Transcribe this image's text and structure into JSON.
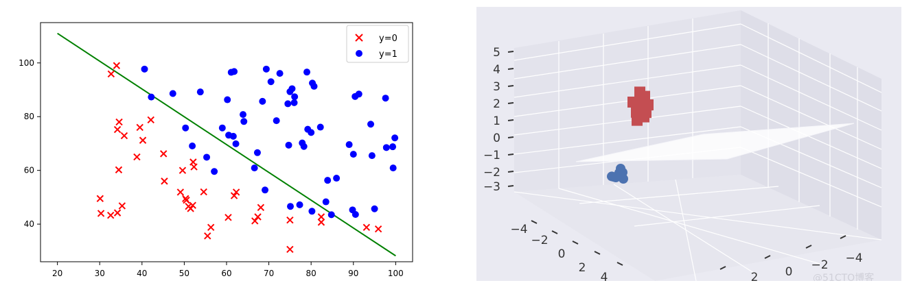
{
  "chart_data": [
    {
      "type": "scatter",
      "title": "",
      "xlabel": "",
      "ylabel": "",
      "xlim": [
        16,
        104
      ],
      "ylim": [
        26,
        115
      ],
      "xticks": [
        20,
        30,
        40,
        50,
        60,
        70,
        80,
        90,
        100
      ],
      "yticks": [
        40,
        60,
        80,
        100
      ],
      "grid": false,
      "legend_position": "top-right",
      "series": [
        {
          "name": "y=0",
          "marker": "x",
          "color": "#ff0000",
          "points": [
            [
              32.7,
              95.9
            ],
            [
              34.0,
              99.0
            ],
            [
              34.6,
              78.0
            ],
            [
              34.2,
              75.2
            ],
            [
              35.8,
              72.9
            ],
            [
              39.5,
              76.0
            ],
            [
              40.2,
              71.2
            ],
            [
              42.1,
              78.8
            ],
            [
              38.8,
              65.0
            ],
            [
              45.1,
              66.2
            ],
            [
              34.5,
              60.2
            ],
            [
              45.3,
              56.0
            ],
            [
              49.6,
              60.0
            ],
            [
              52.1,
              63.1
            ],
            [
              52.3,
              61.3
            ],
            [
              30.1,
              49.5
            ],
            [
              30.3,
              44.0
            ],
            [
              32.6,
              43.3
            ],
            [
              34.2,
              44.2
            ],
            [
              35.3,
              46.8
            ],
            [
              49.1,
              51.9
            ],
            [
              50.3,
              49.5
            ],
            [
              50.5,
              48.9
            ],
            [
              51.0,
              46.6
            ],
            [
              51.5,
              45.8
            ],
            [
              52.0,
              47.0
            ],
            [
              54.6,
              52.0
            ],
            [
              55.5,
              35.6
            ],
            [
              56.3,
              38.8
            ],
            [
              60.4,
              42.5
            ],
            [
              61.8,
              50.6
            ],
            [
              62.3,
              51.9
            ],
            [
              66.7,
              41.2
            ],
            [
              67.4,
              42.7
            ],
            [
              68.1,
              46.2
            ],
            [
              75.0,
              30.6
            ],
            [
              75.0,
              41.5
            ],
            [
              82.4,
              42.7
            ],
            [
              82.4,
              40.7
            ],
            [
              93.1,
              38.8
            ],
            [
              95.9,
              38.2
            ]
          ]
        },
        {
          "name": "y=1",
          "marker": "o",
          "color": "#0000ff",
          "points": [
            [
              40.6,
              97.7
            ],
            [
              42.2,
              87.3
            ],
            [
              47.3,
              88.6
            ],
            [
              50.3,
              75.8
            ],
            [
              51.9,
              69.1
            ],
            [
              53.8,
              89.2
            ],
            [
              55.3,
              64.9
            ],
            [
              57.1,
              59.6
            ],
            [
              59.0,
              75.8
            ],
            [
              60.2,
              86.3
            ],
            [
              60.5,
              73.1
            ],
            [
              61.1,
              96.5
            ],
            [
              61.6,
              72.7
            ],
            [
              61.8,
              96.8
            ],
            [
              62.2,
              69.9
            ],
            [
              63.9,
              80.8
            ],
            [
              64.1,
              78.2
            ],
            [
              66.6,
              60.9
            ],
            [
              67.3,
              66.6
            ],
            [
              68.5,
              85.7
            ],
            [
              69.1,
              52.7
            ],
            [
              69.4,
              97.7
            ],
            [
              70.5,
              93.0
            ],
            [
              71.8,
              78.5
            ],
            [
              72.6,
              96.1
            ],
            [
              74.5,
              84.8
            ],
            [
              74.7,
              69.4
            ],
            [
              75.0,
              89.3
            ],
            [
              75.1,
              46.6
            ],
            [
              75.5,
              90.4
            ],
            [
              76.1,
              87.4
            ],
            [
              76.0,
              85.2
            ],
            [
              77.3,
              47.2
            ],
            [
              77.9,
              70.2
            ],
            [
              78.3,
              68.9
            ],
            [
              79.0,
              96.6
            ],
            [
              79.2,
              75.3
            ],
            [
              80.0,
              74.1
            ],
            [
              80.3,
              92.5
            ],
            [
              80.7,
              91.3
            ],
            [
              80.2,
              44.8
            ],
            [
              82.2,
              76.1
            ],
            [
              83.5,
              48.3
            ],
            [
              83.9,
              56.3
            ],
            [
              84.8,
              43.5
            ],
            [
              86.0,
              57.1
            ],
            [
              89.0,
              69.6
            ],
            [
              89.8,
              45.3
            ],
            [
              90.0,
              66.0
            ],
            [
              90.4,
              87.5
            ],
            [
              90.5,
              43.6
            ],
            [
              91.3,
              88.4
            ],
            [
              94.1,
              77.2
            ],
            [
              94.4,
              65.5
            ],
            [
              95.0,
              45.7
            ],
            [
              97.6,
              86.9
            ],
            [
              97.8,
              68.5
            ],
            [
              99.3,
              68.8
            ],
            [
              99.4,
              60.9
            ],
            [
              99.8,
              72.1
            ]
          ]
        }
      ],
      "decision_boundary": {
        "color": "#008000",
        "x": [
          20,
          100
        ],
        "y": [
          111.0,
          28.2
        ]
      }
    },
    {
      "type": "scatter",
      "subtype": "3d-scatter-with-plane",
      "title": "",
      "background": "#eaeaf2",
      "zticks": [
        "5",
        "4",
        "3",
        "2",
        "1",
        "0",
        "−1",
        "−2",
        "−3"
      ],
      "xticks_left": [
        "−4",
        "−2",
        "0",
        "2",
        "4"
      ],
      "xticks_right": [
        "−4",
        "−2",
        "0",
        "2"
      ],
      "grid": true,
      "series": [
        {
          "color": "#c44e52",
          "points": [
            [
              -1.2,
              0.2,
              2.6
            ],
            [
              -1.0,
              0.3,
              2.4
            ],
            [
              -0.9,
              0.4,
              2.0
            ],
            [
              -1.1,
              0.1,
              1.8
            ],
            [
              -0.8,
              0.5,
              1.6
            ],
            [
              -0.7,
              0.4,
              1.3
            ],
            [
              -1.0,
              0.3,
              2.2
            ],
            [
              -0.9,
              0.2,
              1.9
            ],
            [
              -1.1,
              0.4,
              2.1
            ],
            [
              -0.8,
              0.3,
              1.5
            ],
            [
              -0.6,
              0.6,
              1.2
            ],
            [
              -1.2,
              0.1,
              2.3
            ]
          ]
        },
        {
          "color": "#4c72b0",
          "points": [
            [
              0.2,
              1.4,
              -1.2
            ],
            [
              0.4,
              1.5,
              -1.4
            ],
            [
              0.3,
              1.6,
              -1.6
            ],
            [
              0.1,
              1.3,
              -1.5
            ],
            [
              0.5,
              1.6,
              -1.3
            ],
            [
              0.3,
              1.4,
              -1.8
            ],
            [
              0.2,
              1.5,
              -1.7
            ],
            [
              0.4,
              1.7,
              -1.5
            ]
          ]
        }
      ]
    }
  ],
  "legend": {
    "y0_label": "y=0",
    "y1_label": "y=1"
  },
  "watermark": "@51CTO博客"
}
